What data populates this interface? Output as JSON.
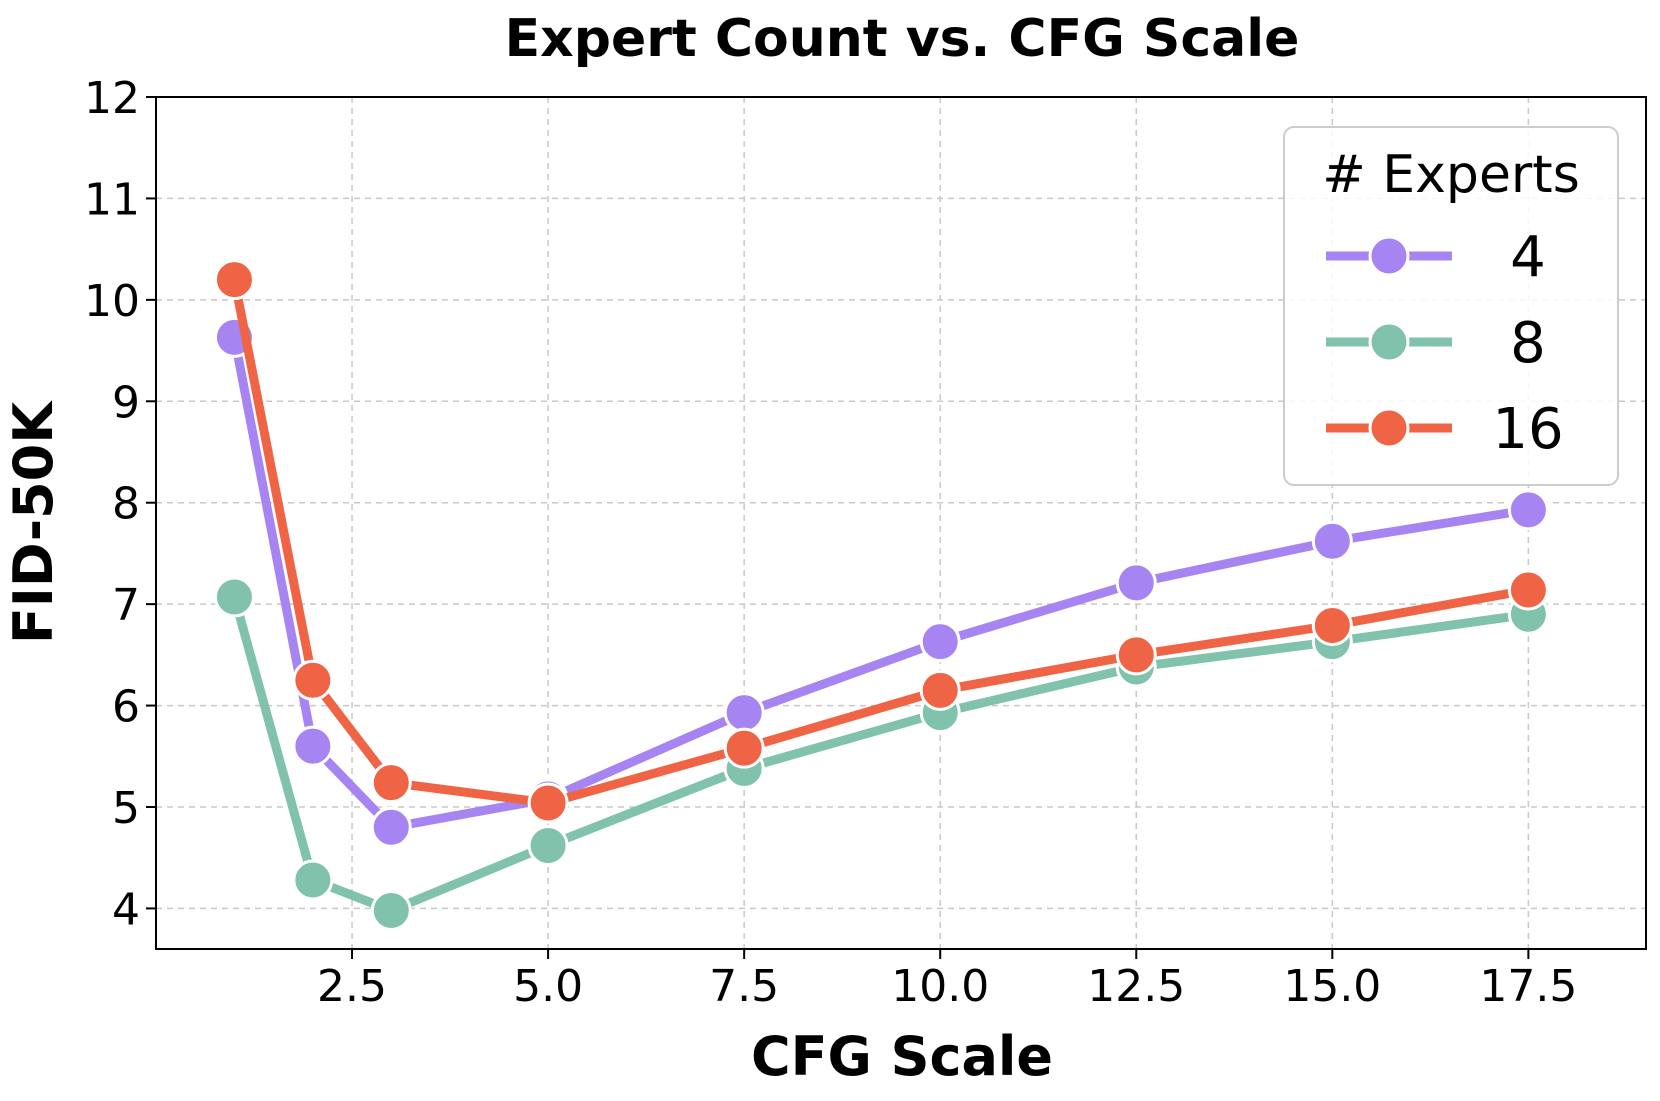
{
  "chart_data": {
    "type": "line",
    "title": "Expert Count vs. CFG Scale",
    "xlabel": "CFG Scale",
    "ylabel": "FID-50K",
    "xlim": [
      0.0,
      19.0
    ],
    "ylim": [
      3.6,
      12.0
    ],
    "x_ticks": [
      2.5,
      5.0,
      7.5,
      10.0,
      12.5,
      15.0,
      17.5
    ],
    "x_tick_labels": [
      "2.5",
      "5.0",
      "7.5",
      "10.0",
      "12.5",
      "15.0",
      "17.5"
    ],
    "y_ticks": [
      4,
      5,
      6,
      7,
      8,
      9,
      10,
      11,
      12
    ],
    "y_tick_labels": [
      "4",
      "5",
      "6",
      "7",
      "8",
      "9",
      "10",
      "11",
      "12"
    ],
    "grid": true,
    "legend": {
      "title": "# Experts",
      "position": "top-right"
    },
    "x": [
      1.0,
      2.0,
      3.0,
      5.0,
      7.5,
      10.0,
      12.5,
      15.0,
      17.5
    ],
    "series": [
      {
        "name": "4",
        "color": "#a685f2",
        "values": [
          9.63,
          5.6,
          4.8,
          5.08,
          5.93,
          6.63,
          7.21,
          7.62,
          7.93
        ]
      },
      {
        "name": "8",
        "color": "#80c2ac",
        "values": [
          7.07,
          4.28,
          3.98,
          4.62,
          5.38,
          5.93,
          6.38,
          6.63,
          6.9
        ]
      },
      {
        "name": "16",
        "color": "#f06446",
        "values": [
          10.2,
          6.25,
          5.24,
          5.04,
          5.58,
          6.15,
          6.5,
          6.79,
          7.14
        ]
      }
    ]
  }
}
